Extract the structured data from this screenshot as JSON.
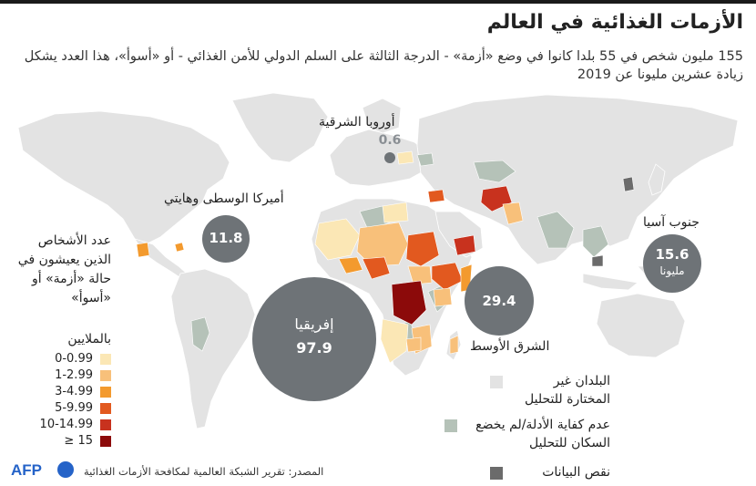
{
  "title": "الأزمات الغذائية في العالم",
  "subtitle": "155 مليون شخص في 55 بلدا كانوا في وضع «أزمة» - الدرجة الثالثة على السلم الدولي للأمن الغذائي - أو «أسوأ»، هذا العدد يشكل زيادة عشرين مليونا عن 2019",
  "regions": [
    {
      "name": "أوروبا الشرقية",
      "value": "0.6"
    },
    {
      "name": "أميركا الوسطى وهايتي",
      "value": "11.8"
    },
    {
      "name": "جنوب آسيا",
      "value": "15.6",
      "unit": "مليونا"
    },
    {
      "name": "إفريقيا",
      "value": "97.9"
    },
    {
      "name": "الشرق الأوسط",
      "value": "29.4"
    }
  ],
  "legend": {
    "title": "عدد الأشخاص الذين يعيشون في حالة «أزمة» أو «أسوأ»",
    "unit": "بالملايين",
    "bins": [
      {
        "label": "0-0.99",
        "color": "#fbe7b5"
      },
      {
        "label": "1-2.99",
        "color": "#f8c07a"
      },
      {
        "label": "3-4.99",
        "color": "#f39a2e"
      },
      {
        "label": "5-9.99",
        "color": "#e2591f"
      },
      {
        "label": "10-14.99",
        "color": "#c8321e"
      },
      {
        "label": "≥ 15",
        "color": "#8c0a0a"
      }
    ]
  },
  "other_legend": [
    {
      "label": "البلدان غير المختارة للتحليل",
      "color": "#e3e3e3"
    },
    {
      "label": "عدم كفاية الأدلة/لم يخضع السكان للتحليل",
      "color": "#b5c2b8"
    },
    {
      "label": "نقص البيانات",
      "color": "#6b6b6b"
    }
  ],
  "source": "المصدر: تقرير الشبكة العالمية لمكافحة الأزمات الغذائية",
  "logo": "AFP",
  "colors": {
    "land": "#e3e3e3",
    "bubble": "#6e7377",
    "no_data": "#6b6b6b",
    "insufficient": "#b5c2b8"
  }
}
